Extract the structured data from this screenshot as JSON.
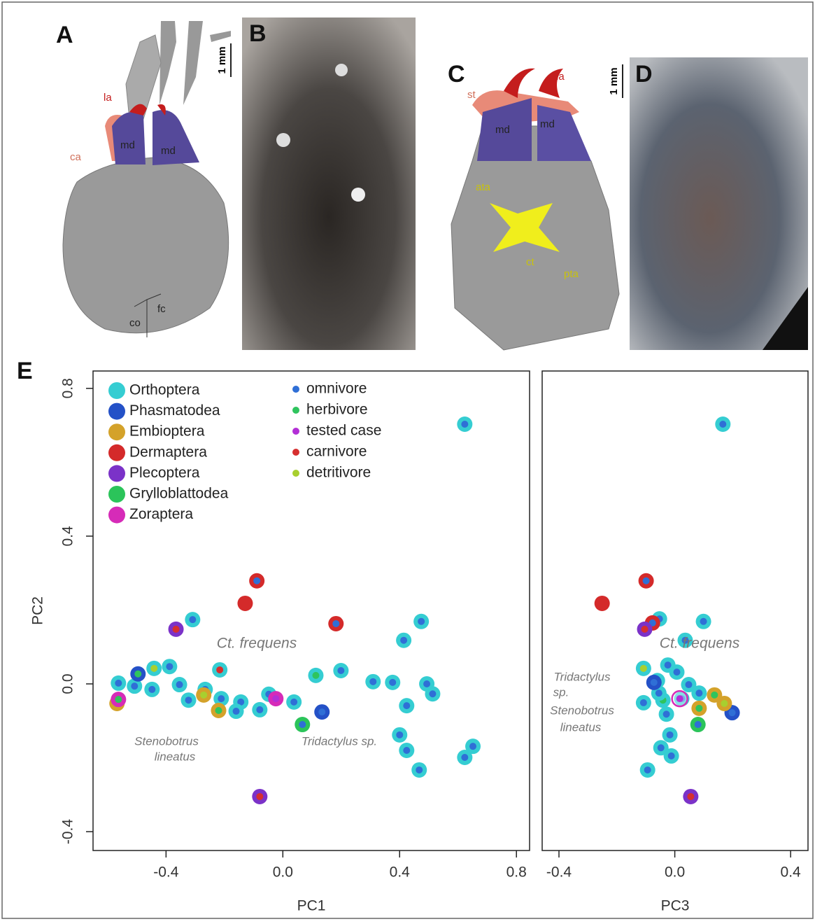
{
  "panels": {
    "A": {
      "label": "A",
      "scale": "1 mm",
      "annotations": [
        "la",
        "ca",
        "md",
        "md",
        "co",
        "fc"
      ]
    },
    "B": {
      "label": "B"
    },
    "C": {
      "label": "C",
      "annotations": [
        "st",
        "la",
        "md",
        "md",
        "ata",
        "ct",
        "pta"
      ]
    },
    "D": {
      "label": "D",
      "scale": "1 mm"
    },
    "E": {
      "label": "E"
    }
  },
  "chart_data": [
    {
      "type": "scatter",
      "xlabel": "PC1",
      "ylabel": "PC2",
      "xlim": [
        -0.65,
        0.845
      ],
      "ylim": [
        -0.451,
        0.847
      ],
      "xticks": [
        -0.4,
        {
          "value": 0,
          "label": "0.0"
        },
        0.4,
        0.8
      ],
      "yticks": [
        -0.4,
        {
          "value": 0,
          "label": "0.0"
        },
        0.4,
        0.8
      ],
      "diets": [
        {
          "name": "omnivore",
          "color": "#2f6fd6"
        },
        {
          "name": "herbivore",
          "color": "#2fc45e"
        },
        {
          "name": "tested case",
          "color": "#b32fd6"
        },
        {
          "name": "carnivore",
          "color": "#d62f2f"
        },
        {
          "name": "detritivore",
          "color": "#a8cf2f"
        }
      ],
      "annotations": [
        "Ct. frequens",
        "Stenobotrus",
        "lineatus",
        "Tridactylus sp."
      ],
      "series": [
        {
          "name": "Orthoptera",
          "color": "#35cdd2",
          "x": [
            0.623,
            0.474,
            0.414,
            0.199,
            0.113,
            0.309,
            0.376,
            0.493,
            0.513,
            0.424,
            0.4,
            0.424,
            0.467,
            0.651,
            0.623,
            -0.309,
            -0.216,
            -0.388,
            -0.441,
            -0.563,
            -0.508,
            -0.448,
            -0.354,
            -0.266,
            -0.211,
            -0.144,
            -0.16,
            -0.079,
            -0.048,
            0.038,
            -0.323
          ],
          "y": [
            0.703,
            0.169,
            0.118,
            0.036,
            0.023,
            0.006,
            0.004,
            0,
            -0.027,
            -0.059,
            -0.138,
            -0.18,
            -0.233,
            -0.169,
            -0.199,
            0.174,
            0.038,
            0.047,
            0.042,
            0.002,
            -0.006,
            -0.015,
            -0.002,
            -0.015,
            -0.04,
            -0.049,
            -0.074,
            -0.07,
            -0.028,
            -0.049,
            -0.044
          ],
          "diet": [
            "omnivore",
            "omnivore",
            "omnivore",
            "omnivore",
            "herbivore",
            "omnivore",
            "omnivore",
            "omnivore",
            "omnivore",
            "omnivore",
            "omnivore",
            "omnivore",
            "omnivore",
            "omnivore",
            "omnivore",
            "omnivore",
            "carnivore",
            "omnivore",
            "detritivore",
            "omnivore",
            "omnivore",
            "omnivore",
            "omnivore",
            "omnivore",
            "omnivore",
            "omnivore",
            "omnivore",
            "omnivore",
            "omnivore",
            "omnivore",
            "omnivore"
          ]
        },
        {
          "name": "Phasmatodea",
          "color": "#2451c7",
          "x": [
            -0.496,
            0.134
          ],
          "y": [
            0.027,
            -0.076
          ],
          "diet": [
            "herbivore",
            "omnivore"
          ]
        },
        {
          "name": "Embioptera",
          "color": "#d4a22a",
          "x": [
            -0.568,
            -0.271,
            -0.22
          ],
          "y": [
            -0.053,
            -0.03,
            -0.072
          ],
          "diet": [
            "herbivore",
            "detritivore",
            "herbivore"
          ]
        },
        {
          "name": "Dermaptera",
          "color": "#d42a2a",
          "x": [
            -0.089,
            -0.129,
            0.182
          ],
          "y": [
            0.279,
            0.218,
            0.163
          ],
          "diet": [
            "omnivore",
            null,
            "omnivore"
          ]
        },
        {
          "name": "Plecoptera",
          "color": "#7b32c8",
          "x": [
            -0.366,
            -0.079
          ],
          "y": [
            0.148,
            -0.305
          ],
          "diet": [
            "carnivore",
            "carnivore"
          ]
        },
        {
          "name": "Grylloblattodea",
          "color": "#2bc45a",
          "x": [
            0.067
          ],
          "y": [
            -0.11
          ],
          "diet": [
            "omnivore"
          ]
        },
        {
          "name": "Zoraptera",
          "color": "#d62bb8",
          "x": [
            -0.563,
            -0.024
          ],
          "y": [
            -0.042,
            -0.04
          ],
          "diet": [
            "herbivore",
            "tested case"
          ]
        }
      ]
    },
    {
      "type": "scatter",
      "xlabel": "PC3",
      "xlim": [
        -0.458,
        0.46
      ],
      "ylim": [
        -0.451,
        0.847
      ],
      "xticks": [
        -0.4,
        {
          "value": 0,
          "label": "0.0"
        },
        0.4
      ],
      "annotations": [
        "Ct. frequens",
        "Tridactylus",
        "sp.",
        "Stenobotrus",
        "lineatus"
      ],
      "series": [
        {
          "color": "#35cdd2",
          "x": [
            0.166,
            0.099,
            0.036,
            -0.053,
            -0.108,
            -0.024,
            0.007,
            -0.06,
            0.048,
            0.084,
            -0.041,
            -0.108,
            -0.029,
            -0.017,
            -0.048,
            -0.012,
            -0.094,
            0.024,
            -0.055
          ],
          "y": [
            0.703,
            0.169,
            0.118,
            0.176,
            0.042,
            0.051,
            0.032,
            0.009,
            -0.002,
            -0.025,
            -0.044,
            -0.051,
            -0.082,
            -0.138,
            -0.173,
            -0.195,
            -0.233,
            -0.04,
            -0.025
          ],
          "diet": [
            "omnivore",
            "omnivore",
            "omnivore",
            "omnivore",
            "detritivore",
            "omnivore",
            "omnivore",
            "carnivore",
            "omnivore",
            "omnivore",
            "herbivore",
            "omnivore",
            "omnivore",
            "omnivore",
            "omnivore",
            "omnivore",
            "omnivore",
            "omnivore",
            "omnivore"
          ]
        },
        {
          "color": "#2451c7",
          "x": [
            0.198,
            -0.072
          ],
          "y": [
            -0.078,
            0.004
          ],
          "diet": [
            "omnivore",
            "omnivore"
          ]
        },
        {
          "color": "#d4a22a",
          "x": [
            0.137,
            0.171,
            0.084
          ],
          "y": [
            -0.03,
            -0.053,
            -0.066
          ],
          "diet": [
            "herbivore",
            "detritivore",
            "herbivore"
          ]
        },
        {
          "color": "#d42a2a",
          "x": [
            -0.251,
            -0.099,
            -0.077
          ],
          "y": [
            0.218,
            0.279,
            0.165
          ],
          "diet": [
            null,
            "omnivore",
            "omnivore"
          ]
        },
        {
          "color": "#7b32c8",
          "x": [
            -0.104,
            0.055
          ],
          "y": [
            0.148,
            -0.305
          ],
          "diet": [
            "carnivore",
            "carnivore"
          ]
        },
        {
          "color": "#2bc45a",
          "x": [
            0.08
          ],
          "y": [
            -0.11
          ],
          "diet": [
            "omnivore"
          ]
        },
        {
          "color": "#d62bb8",
          "x": [
            0.017
          ],
          "y": [
            -0.04
          ],
          "diet": [
            "tested case"
          ]
        }
      ]
    }
  ]
}
